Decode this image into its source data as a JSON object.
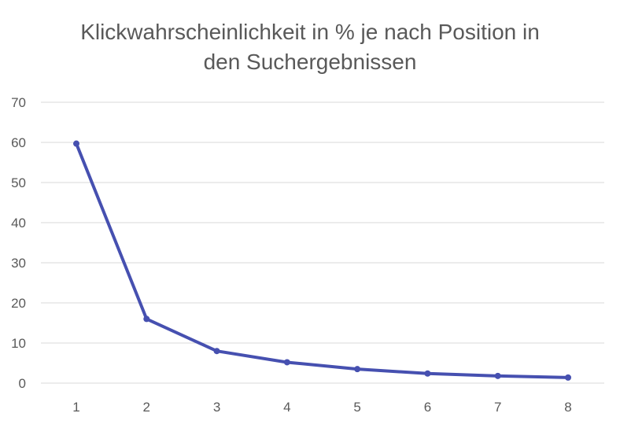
{
  "chart_data": {
    "type": "line",
    "title_lines": [
      "Klickwahrscheinlichkeit in % je nach Position in",
      "den Suchergebnissen"
    ],
    "xlabel": "",
    "ylabel": "",
    "categories": [
      "1",
      "2",
      "3",
      "4",
      "5",
      "6",
      "7",
      "8"
    ],
    "series": [
      {
        "color": "#4650b0",
        "values": [
          59.7,
          16.0,
          8.0,
          5.2,
          3.5,
          2.4,
          1.8,
          1.4
        ]
      }
    ],
    "ylim": [
      0,
      70
    ],
    "yticks": [
      "0",
      "10",
      "20",
      "30",
      "40",
      "50",
      "60",
      "70"
    ],
    "grid": true,
    "legend": "none"
  }
}
